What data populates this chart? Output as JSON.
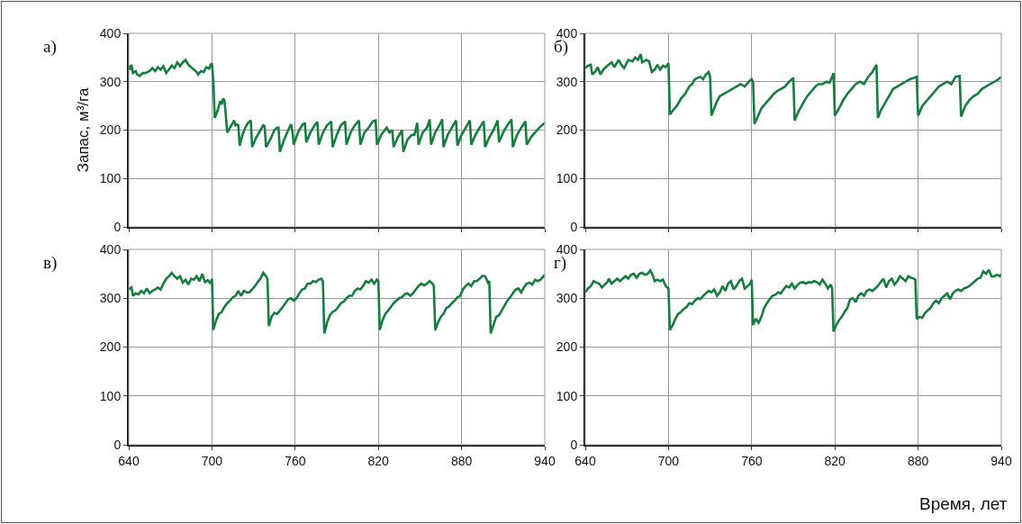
{
  "chart_data": [
    {
      "type": "line",
      "title": "а)",
      "ylabel": "Запас, м³/га",
      "color": "#167d3f",
      "xlim": [
        640,
        940
      ],
      "ylim": [
        0,
        400
      ],
      "xticks": [
        640,
        700,
        760,
        820,
        880,
        940
      ],
      "yticks": [
        0,
        100,
        200,
        300,
        400
      ],
      "grid": true,
      "tick_labels": "y",
      "x": [
        640,
        641,
        642,
        643,
        645,
        646,
        648,
        650,
        652,
        655,
        657,
        659,
        661,
        663,
        665,
        667,
        669,
        671,
        673,
        675,
        677,
        679,
        681,
        683,
        685,
        687,
        689,
        690,
        692,
        694,
        696,
        698,
        699,
        700,
        701,
        702,
        704,
        706,
        707,
        708,
        709,
        710,
        711,
        713,
        715,
        716,
        717,
        718,
        719,
        720,
        722,
        724,
        726,
        728,
        729,
        732,
        735,
        737,
        738,
        739,
        742,
        745,
        747,
        748,
        749,
        752,
        755,
        757,
        758,
        759,
        762,
        765,
        767,
        768,
        771,
        774,
        776,
        777,
        780,
        783,
        786,
        787,
        790,
        793,
        796,
        797,
        800,
        803,
        806,
        807,
        810,
        813,
        816,
        818,
        819,
        822,
        826,
        828,
        830,
        831,
        834,
        837,
        838,
        841,
        844,
        846,
        848,
        849,
        852,
        855,
        857,
        858,
        861,
        864,
        866,
        867,
        870,
        873,
        876,
        877,
        880,
        883,
        886,
        887,
        890,
        893,
        896,
        897,
        900,
        903,
        906,
        907,
        910,
        913,
        916,
        917,
        920,
        923,
        926,
        927,
        930,
        933,
        936,
        938,
        940
      ],
      "values": [
        333,
        325,
        335,
        318,
        322,
        315,
        312,
        318,
        318,
        322,
        328,
        322,
        330,
        325,
        332,
        318,
        325,
        333,
        328,
        340,
        332,
        340,
        345,
        335,
        330,
        325,
        320,
        315,
        322,
        320,
        330,
        327,
        335,
        338,
        300,
        225,
        240,
        260,
        253,
        265,
        262,
        230,
        195,
        205,
        215,
        220,
        210,
        212,
        210,
        168,
        190,
        205,
        215,
        220,
        165,
        185,
        200,
        210,
        208,
        165,
        180,
        200,
        205,
        205,
        155,
        180,
        200,
        212,
        198,
        170,
        195,
        210,
        215,
        175,
        195,
        210,
        217,
        170,
        195,
        210,
        218,
        165,
        190,
        210,
        218,
        170,
        195,
        210,
        220,
        170,
        195,
        205,
        218,
        220,
        170,
        190,
        205,
        195,
        200,
        165,
        185,
        200,
        155,
        180,
        190,
        190,
        215,
        170,
        195,
        205,
        222,
        170,
        195,
        210,
        222,
        165,
        190,
        205,
        220,
        168,
        190,
        205,
        220,
        170,
        190,
        205,
        218,
        165,
        185,
        200,
        220,
        175,
        195,
        210,
        222,
        165,
        190,
        205,
        218,
        170,
        185,
        195,
        205,
        210,
        215
      ]
    },
    {
      "type": "line",
      "title": "б)",
      "color": "#167d3f",
      "xlim": [
        640,
        940
      ],
      "ylim": [
        0,
        400
      ],
      "xticks": [
        640,
        700,
        760,
        820,
        880,
        940
      ],
      "yticks": [
        0,
        100,
        200,
        300,
        400
      ],
      "grid": true,
      "tick_labels": "y",
      "x": [
        640,
        642,
        644,
        645,
        647,
        649,
        651,
        653,
        656,
        659,
        661,
        664,
        666,
        668,
        671,
        674,
        676,
        678,
        680,
        681,
        684,
        686,
        688,
        690,
        692,
        694,
        696,
        698,
        700,
        701,
        703,
        706,
        709,
        712,
        715,
        717,
        719,
        721,
        723,
        725,
        727,
        729,
        730,
        731,
        733,
        735,
        737,
        740,
        743,
        746,
        749,
        752,
        755,
        758,
        760,
        761,
        762,
        764,
        767,
        770,
        773,
        776,
        778,
        781,
        784,
        787,
        789,
        790,
        791,
        794,
        797,
        800,
        803,
        806,
        808,
        811,
        814,
        816,
        818,
        819,
        820,
        823,
        826,
        829,
        832,
        835,
        838,
        841,
        844,
        847,
        850,
        851,
        853,
        856,
        859,
        862,
        865,
        868,
        871,
        874,
        877,
        879,
        880,
        883,
        886,
        889,
        892,
        895,
        898,
        901,
        904,
        907,
        910,
        911,
        914,
        917,
        920,
        923,
        926,
        929,
        932,
        935,
        938,
        940
      ],
      "values": [
        328,
        333,
        335,
        315,
        320,
        330,
        315,
        325,
        333,
        340,
        330,
        345,
        335,
        328,
        345,
        342,
        350,
        345,
        357,
        340,
        345,
        342,
        320,
        325,
        335,
        325,
        333,
        330,
        338,
        232,
        240,
        250,
        265,
        275,
        290,
        295,
        305,
        308,
        310,
        305,
        315,
        320,
        310,
        230,
        245,
        260,
        270,
        275,
        280,
        285,
        290,
        295,
        290,
        300,
        305,
        300,
        213,
        225,
        245,
        255,
        265,
        275,
        280,
        285,
        290,
        300,
        305,
        308,
        220,
        240,
        255,
        270,
        280,
        290,
        295,
        295,
        300,
        298,
        310,
        318,
        230,
        245,
        262,
        275,
        285,
        295,
        300,
        295,
        310,
        320,
        335,
        225,
        240,
        255,
        270,
        285,
        290,
        295,
        300,
        305,
        308,
        310,
        230,
        250,
        260,
        270,
        280,
        290,
        295,
        300,
        295,
        310,
        312,
        228,
        250,
        262,
        270,
        275,
        285,
        290,
        295,
        300,
        305,
        310
      ]
    },
    {
      "type": "line",
      "title": "в)",
      "color": "#167d3f",
      "xlim": [
        640,
        940
      ],
      "ylim": [
        0,
        400
      ],
      "xticks": [
        640,
        700,
        760,
        820,
        880,
        940
      ],
      "yticks": [
        0,
        100,
        200,
        300,
        400
      ],
      "grid": true,
      "x": [
        640,
        642,
        643,
        645,
        647,
        649,
        651,
        653,
        655,
        657,
        659,
        661,
        663,
        665,
        667,
        669,
        671,
        673,
        675,
        677,
        679,
        681,
        683,
        685,
        687,
        689,
        691,
        693,
        695,
        697,
        699,
        700,
        701,
        703,
        705,
        707,
        709,
        711,
        713,
        715,
        717,
        719,
        721,
        723,
        725,
        727,
        729,
        731,
        733,
        735,
        737,
        739,
        740,
        741,
        743,
        745,
        747,
        749,
        751,
        753,
        755,
        757,
        759,
        761,
        763,
        765,
        767,
        769,
        771,
        773,
        775,
        777,
        779,
        780,
        781,
        783,
        785,
        787,
        789,
        791,
        793,
        795,
        797,
        799,
        801,
        803,
        805,
        807,
        809,
        811,
        813,
        815,
        817,
        819,
        820,
        821,
        823,
        825,
        827,
        829,
        831,
        833,
        835,
        837,
        839,
        841,
        843,
        845,
        847,
        849,
        851,
        853,
        855,
        857,
        859,
        860,
        861,
        863,
        865,
        867,
        869,
        871,
        873,
        875,
        877,
        879,
        881,
        883,
        885,
        887,
        889,
        891,
        893,
        895,
        897,
        899,
        900,
        901,
        903,
        905,
        907,
        909,
        911,
        913,
        915,
        917,
        919,
        921,
        923,
        925,
        927,
        929,
        931,
        933,
        935,
        937,
        940
      ],
      "values": [
        318,
        322,
        305,
        310,
        308,
        315,
        310,
        320,
        310,
        315,
        318,
        322,
        318,
        330,
        340,
        345,
        352,
        345,
        340,
        345,
        332,
        338,
        328,
        340,
        338,
        345,
        335,
        350,
        333,
        337,
        330,
        340,
        235,
        255,
        268,
        272,
        282,
        290,
        295,
        302,
        305,
        315,
        305,
        315,
        312,
        312,
        318,
        325,
        333,
        340,
        352,
        345,
        340,
        243,
        262,
        270,
        268,
        275,
        282,
        290,
        298,
        300,
        295,
        300,
        310,
        318,
        320,
        330,
        330,
        335,
        333,
        338,
        340,
        335,
        228,
        250,
        265,
        272,
        275,
        282,
        290,
        293,
        300,
        305,
        305,
        315,
        320,
        318,
        325,
        335,
        332,
        338,
        330,
        338,
        335,
        235,
        255,
        268,
        275,
        282,
        290,
        295,
        300,
        302,
        308,
        310,
        305,
        310,
        318,
        325,
        330,
        326,
        330,
        335,
        330,
        325,
        235,
        250,
        262,
        268,
        280,
        283,
        290,
        295,
        302,
        305,
        318,
        325,
        330,
        325,
        335,
        335,
        340,
        346,
        345,
        332,
        335,
        228,
        245,
        262,
        265,
        275,
        285,
        295,
        302,
        310,
        318,
        320,
        312,
        322,
        330,
        332,
        328,
        338,
        335,
        338,
        348
      ]
    },
    {
      "type": "line",
      "title": "г)",
      "xlabel": "Время, лет",
      "color": "#167d3f",
      "xlim": [
        640,
        940
      ],
      "ylim": [
        0,
        400
      ],
      "xticks": [
        640,
        700,
        760,
        820,
        880,
        940
      ],
      "yticks": [
        0,
        100,
        200,
        300,
        400
      ],
      "grid": true,
      "x": [
        640,
        642,
        644,
        646,
        648,
        650,
        652,
        654,
        656,
        657,
        659,
        661,
        663,
        665,
        667,
        669,
        671,
        673,
        675,
        677,
        679,
        681,
        683,
        685,
        687,
        689,
        690,
        692,
        694,
        696,
        698,
        700,
        701,
        703,
        705,
        707,
        709,
        711,
        713,
        715,
        717,
        719,
        721,
        723,
        725,
        727,
        729,
        731,
        733,
        735,
        737,
        739,
        741,
        743,
        745,
        747,
        749,
        751,
        753,
        755,
        757,
        759,
        760,
        761,
        763,
        765,
        767,
        769,
        771,
        773,
        775,
        777,
        779,
        781,
        783,
        785,
        787,
        789,
        791,
        793,
        795,
        797,
        799,
        801,
        803,
        805,
        807,
        809,
        811,
        813,
        815,
        817,
        818,
        819,
        821,
        823,
        825,
        827,
        829,
        831,
        833,
        835,
        837,
        839,
        841,
        843,
        845,
        847,
        849,
        851,
        853,
        855,
        857,
        859,
        861,
        863,
        865,
        867,
        869,
        871,
        873,
        875,
        877,
        878,
        879,
        881,
        883,
        885,
        887,
        889,
        891,
        893,
        895,
        897,
        899,
        901,
        903,
        905,
        907,
        909,
        911,
        913,
        915,
        917,
        919,
        921,
        923,
        925,
        927,
        929,
        931,
        933,
        935,
        937,
        939,
        940
      ],
      "values": [
        312,
        320,
        325,
        335,
        332,
        330,
        322,
        328,
        333,
        340,
        330,
        335,
        340,
        335,
        340,
        345,
        340,
        348,
        350,
        342,
        350,
        352,
        348,
        350,
        357,
        345,
        335,
        338,
        335,
        338,
        325,
        320,
        235,
        245,
        258,
        268,
        272,
        278,
        282,
        290,
        288,
        295,
        300,
        298,
        305,
        310,
        315,
        312,
        318,
        305,
        312,
        325,
        315,
        330,
        335,
        318,
        325,
        335,
        340,
        320,
        325,
        330,
        338,
        245,
        258,
        250,
        262,
        280,
        290,
        298,
        305,
        307,
        312,
        310,
        318,
        325,
        322,
        330,
        320,
        327,
        332,
        333,
        330,
        333,
        332,
        335,
        333,
        328,
        338,
        330,
        320,
        328,
        320,
        232,
        245,
        255,
        262,
        272,
        280,
        298,
        300,
        292,
        305,
        310,
        305,
        315,
        318,
        315,
        320,
        325,
        333,
        340,
        322,
        335,
        340,
        328,
        335,
        345,
        340,
        335,
        345,
        342,
        340,
        338,
        258,
        262,
        260,
        270,
        275,
        280,
        290,
        295,
        290,
        300,
        305,
        310,
        298,
        310,
        315,
        318,
        315,
        320,
        322,
        325,
        330,
        335,
        340,
        342,
        355,
        350,
        358,
        345,
        345,
        348,
        345,
        350
      ]
    }
  ]
}
